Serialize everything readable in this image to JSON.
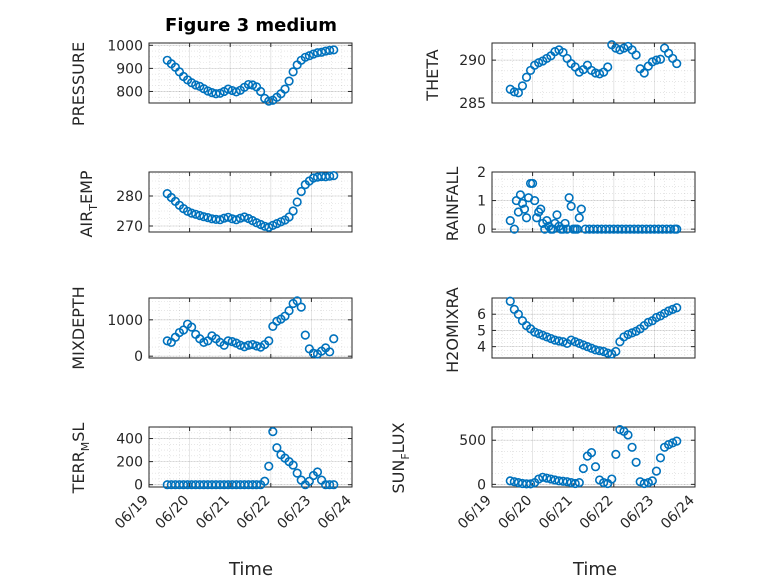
{
  "figure": {
    "title": "Figure 3 medium",
    "marker_color": "#0072BD",
    "x_tick_labels": [
      "06/19",
      "06/20",
      "06/21",
      "06/22",
      "06/23",
      "06/24"
    ],
    "x_axis_label": "Time"
  },
  "chart_data": [
    {
      "type": "scatter",
      "ylabel": "PRESSURE",
      "xlim": [
        0,
        5
      ],
      "ylim": [
        750,
        1010
      ],
      "yticks": [
        800,
        900,
        1000
      ],
      "x": [
        0.45,
        0.55,
        0.65,
        0.75,
        0.85,
        0.95,
        1.05,
        1.15,
        1.25,
        1.35,
        1.45,
        1.55,
        1.65,
        1.75,
        1.85,
        1.95,
        2.05,
        2.15,
        2.25,
        2.35,
        2.45,
        2.55,
        2.65,
        2.75,
        2.85,
        2.95,
        3.05,
        3.15,
        3.25,
        3.35,
        3.45,
        3.55,
        3.65,
        3.75,
        3.85,
        3.95,
        4.05,
        4.15,
        4.25,
        4.35,
        4.45,
        4.55
      ],
      "y": [
        935,
        920,
        905,
        885,
        865,
        850,
        838,
        828,
        822,
        812,
        802,
        795,
        790,
        792,
        800,
        810,
        804,
        798,
        805,
        818,
        830,
        828,
        820,
        800,
        770,
        758,
        762,
        775,
        790,
        810,
        845,
        885,
        915,
        935,
        948,
        955,
        962,
        968,
        970,
        975,
        978,
        980
      ]
    },
    {
      "type": "scatter",
      "ylabel": "THETA",
      "xlim": [
        0,
        5
      ],
      "ylim": [
        285,
        292
      ],
      "yticks": [
        285,
        290
      ],
      "x": [
        0.45,
        0.55,
        0.65,
        0.75,
        0.85,
        0.95,
        1.05,
        1.15,
        1.25,
        1.35,
        1.45,
        1.55,
        1.65,
        1.75,
        1.85,
        1.95,
        2.05,
        2.15,
        2.25,
        2.35,
        2.45,
        2.55,
        2.65,
        2.75,
        2.85,
        2.95,
        3.05,
        3.15,
        3.25,
        3.35,
        3.45,
        3.55,
        3.65,
        3.75,
        3.85,
        3.95,
        4.05,
        4.15,
        4.25,
        4.35,
        4.45,
        4.55
      ],
      "y": [
        286.6,
        286.3,
        286.2,
        287.0,
        288.0,
        288.8,
        289.4,
        289.7,
        289.9,
        290.2,
        290.5,
        291.0,
        291.2,
        290.9,
        290.2,
        289.6,
        289.2,
        288.6,
        288.9,
        289.4,
        288.8,
        288.5,
        288.4,
        288.6,
        289.2,
        291.8,
        291.4,
        291.2,
        291.4,
        291.6,
        291.2,
        290.6,
        289.0,
        288.5,
        289.3,
        289.8,
        290.0,
        290.1,
        291.4,
        290.8,
        290.2,
        289.6
      ]
    },
    {
      "type": "scatter",
      "ylabel": "AIR_TEMP",
      "xlim": [
        0,
        5
      ],
      "ylim": [
        268,
        288
      ],
      "yticks": [
        270,
        280
      ],
      "x": [
        0.45,
        0.55,
        0.65,
        0.75,
        0.85,
        0.95,
        1.05,
        1.15,
        1.25,
        1.35,
        1.45,
        1.55,
        1.65,
        1.75,
        1.85,
        1.95,
        2.05,
        2.15,
        2.25,
        2.35,
        2.45,
        2.55,
        2.65,
        2.75,
        2.85,
        2.95,
        3.05,
        3.15,
        3.25,
        3.35,
        3.45,
        3.55,
        3.65,
        3.75,
        3.85,
        3.95,
        4.05,
        4.15,
        4.25,
        4.35,
        4.45,
        4.55
      ],
      "y": [
        280.8,
        279.5,
        278.2,
        276.9,
        275.8,
        274.9,
        274.3,
        273.9,
        273.5,
        273.1,
        272.8,
        272.4,
        272.2,
        272.1,
        272.6,
        272.9,
        272.4,
        272.1,
        272.6,
        273.0,
        272.5,
        271.8,
        271.1,
        270.5,
        269.9,
        269.6,
        270.2,
        270.8,
        271.4,
        272.0,
        273.0,
        275.0,
        278.0,
        281.5,
        283.8,
        285.0,
        286.0,
        286.3,
        286.5,
        286.4,
        286.6,
        286.8
      ]
    },
    {
      "type": "scatter",
      "ylabel": "RAINFALL",
      "xlim": [
        0,
        5
      ],
      "ylim": [
        -0.1,
        2
      ],
      "yticks": [
        0,
        1,
        2
      ],
      "x": [
        0.45,
        0.55,
        0.6,
        0.65,
        0.7,
        0.75,
        0.8,
        0.85,
        0.9,
        0.95,
        1.0,
        1.05,
        1.1,
        1.15,
        1.2,
        1.25,
        1.3,
        1.35,
        1.4,
        1.45,
        1.5,
        1.55,
        1.6,
        1.65,
        1.7,
        1.75,
        1.8,
        1.85,
        1.9,
        1.95,
        2.0,
        2.05,
        2.1,
        2.15,
        2.2,
        2.3,
        2.4,
        2.5,
        2.6,
        2.7,
        2.8,
        2.9,
        3.0,
        3.1,
        3.2,
        3.3,
        3.4,
        3.5,
        3.6,
        3.7,
        3.8,
        3.9,
        4.0,
        4.1,
        4.2,
        4.3,
        4.4,
        4.5,
        4.55
      ],
      "y": [
        0.3,
        0.0,
        1.0,
        0.6,
        1.2,
        0.9,
        0.7,
        0.4,
        1.1,
        1.6,
        1.6,
        1.0,
        0.4,
        0.6,
        0.7,
        0.2,
        0.0,
        0.3,
        0.1,
        0.0,
        0.0,
        0.2,
        0.5,
        0.1,
        0.0,
        0.0,
        0.2,
        0.0,
        1.1,
        0.8,
        0.0,
        0.0,
        0.0,
        0.4,
        0.7,
        0.0,
        0.0,
        0.0,
        0.0,
        0.0,
        0.0,
        0.0,
        0.0,
        0.0,
        0.0,
        0.0,
        0.0,
        0.0,
        0.0,
        0.0,
        0.0,
        0.0,
        0.0,
        0.0,
        0.0,
        0.0,
        0.0,
        0.0,
        0.0
      ]
    },
    {
      "type": "scatter",
      "ylabel": "MIXDEPTH",
      "xlim": [
        0,
        5
      ],
      "ylim": [
        -50,
        1600
      ],
      "yticks": [
        0,
        1000
      ],
      "x": [
        0.45,
        0.55,
        0.65,
        0.75,
        0.85,
        0.95,
        1.05,
        1.15,
        1.25,
        1.35,
        1.45,
        1.55,
        1.65,
        1.75,
        1.85,
        1.95,
        2.05,
        2.15,
        2.25,
        2.35,
        2.45,
        2.55,
        2.65,
        2.75,
        2.85,
        2.95,
        3.05,
        3.15,
        3.25,
        3.35,
        3.45,
        3.55,
        3.65,
        3.75,
        3.85,
        3.95,
        4.05,
        4.15,
        4.25,
        4.35,
        4.45,
        4.55
      ],
      "y": [
        420,
        380,
        520,
        650,
        720,
        880,
        800,
        600,
        480,
        380,
        420,
        560,
        480,
        380,
        300,
        420,
        400,
        360,
        300,
        260,
        300,
        320,
        280,
        250,
        320,
        420,
        820,
        960,
        1020,
        1100,
        1250,
        1450,
        1520,
        1350,
        580,
        200,
        80,
        60,
        140,
        230,
        120,
        480
      ]
    },
    {
      "type": "scatter",
      "ylabel": "H2OMIXRA",
      "xlim": [
        0,
        5
      ],
      "ylim": [
        3.3,
        7
      ],
      "yticks": [
        4,
        5,
        6
      ],
      "x": [
        0.45,
        0.55,
        0.65,
        0.75,
        0.85,
        0.95,
        1.05,
        1.15,
        1.25,
        1.35,
        1.45,
        1.55,
        1.65,
        1.75,
        1.85,
        1.95,
        2.05,
        2.15,
        2.25,
        2.35,
        2.45,
        2.55,
        2.65,
        2.75,
        2.85,
        2.95,
        3.05,
        3.15,
        3.25,
        3.35,
        3.45,
        3.55,
        3.65,
        3.75,
        3.85,
        3.95,
        4.05,
        4.15,
        4.25,
        4.35,
        4.45,
        4.55
      ],
      "y": [
        6.8,
        6.3,
        6.0,
        5.6,
        5.3,
        5.1,
        4.9,
        4.8,
        4.7,
        4.6,
        4.5,
        4.4,
        4.35,
        4.3,
        4.2,
        4.4,
        4.3,
        4.2,
        4.1,
        4.0,
        3.9,
        3.8,
        3.75,
        3.7,
        3.6,
        3.55,
        3.7,
        4.3,
        4.6,
        4.75,
        4.85,
        4.95,
        5.1,
        5.3,
        5.5,
        5.6,
        5.8,
        5.9,
        6.05,
        6.2,
        6.3,
        6.4
      ]
    },
    {
      "type": "scatter",
      "ylabel": "TERR_MSL",
      "xlim": [
        0,
        5
      ],
      "ylim": [
        -20,
        500
      ],
      "yticks": [
        0,
        200,
        400
      ],
      "x": [
        0.45,
        0.55,
        0.65,
        0.75,
        0.85,
        0.95,
        1.05,
        1.15,
        1.25,
        1.35,
        1.45,
        1.55,
        1.65,
        1.75,
        1.85,
        1.95,
        2.05,
        2.15,
        2.25,
        2.35,
        2.45,
        2.55,
        2.65,
        2.75,
        2.85,
        2.95,
        3.05,
        3.15,
        3.25,
        3.35,
        3.45,
        3.55,
        3.65,
        3.75,
        3.85,
        3.95,
        4.05,
        4.15,
        4.25,
        4.35,
        4.45,
        4.55
      ],
      "y": [
        0,
        0,
        0,
        0,
        0,
        0,
        0,
        0,
        0,
        0,
        0,
        0,
        0,
        0,
        0,
        0,
        0,
        0,
        0,
        0,
        0,
        0,
        0,
        0,
        30,
        160,
        460,
        320,
        260,
        230,
        200,
        170,
        100,
        40,
        0,
        30,
        80,
        110,
        40,
        0,
        0,
        0
      ]
    },
    {
      "type": "scatter",
      "ylabel": "SUN_FLUX",
      "xlim": [
        0,
        5
      ],
      "ylim": [
        -30,
        650
      ],
      "yticks": [
        0,
        500
      ],
      "x": [
        0.45,
        0.55,
        0.65,
        0.75,
        0.85,
        0.95,
        1.05,
        1.15,
        1.25,
        1.35,
        1.45,
        1.55,
        1.65,
        1.75,
        1.85,
        1.95,
        2.05,
        2.15,
        2.25,
        2.35,
        2.45,
        2.55,
        2.65,
        2.75,
        2.85,
        2.95,
        3.05,
        3.15,
        3.25,
        3.35,
        3.45,
        3.55,
        3.65,
        3.75,
        3.85,
        3.95,
        4.05,
        4.15,
        4.25,
        4.35,
        4.45,
        4.55
      ],
      "y": [
        40,
        30,
        20,
        10,
        5,
        5,
        20,
        60,
        80,
        70,
        60,
        50,
        40,
        35,
        30,
        20,
        10,
        20,
        180,
        320,
        360,
        200,
        50,
        20,
        10,
        60,
        340,
        620,
        600,
        560,
        420,
        250,
        30,
        10,
        20,
        40,
        150,
        300,
        420,
        450,
        470,
        490
      ]
    }
  ]
}
